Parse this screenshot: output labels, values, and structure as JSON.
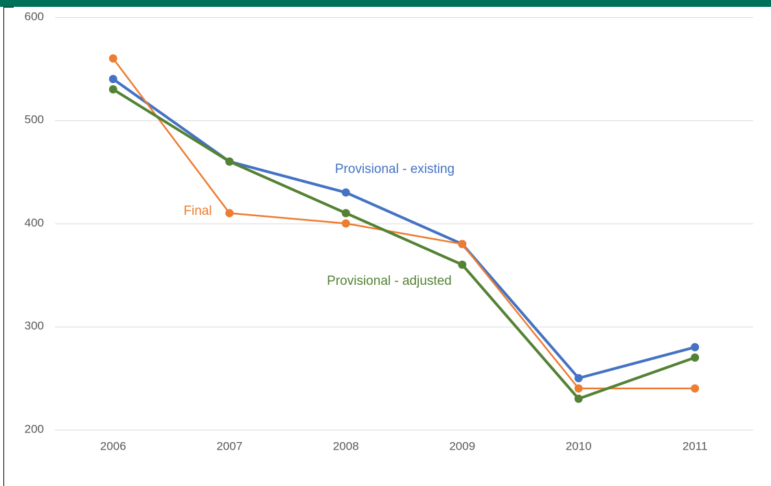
{
  "chart_data": {
    "type": "line",
    "categories": [
      "2006",
      "2007",
      "2008",
      "2009",
      "2010",
      "2011"
    ],
    "series": [
      {
        "name": "Provisional - existing",
        "color": "#4472c4",
        "values": [
          540,
          460,
          430,
          380,
          250,
          280
        ]
      },
      {
        "name": "Final",
        "color": "#ed7d31",
        "values": [
          560,
          410,
          400,
          380,
          240,
          240
        ]
      },
      {
        "name": "Provisional - adjusted",
        "color": "#548235",
        "values": [
          530,
          460,
          410,
          360,
          230,
          270
        ]
      }
    ],
    "ylim": [
      200,
      600
    ],
    "yticks": [
      200,
      300,
      400,
      500,
      600
    ],
    "grid": true
  }
}
